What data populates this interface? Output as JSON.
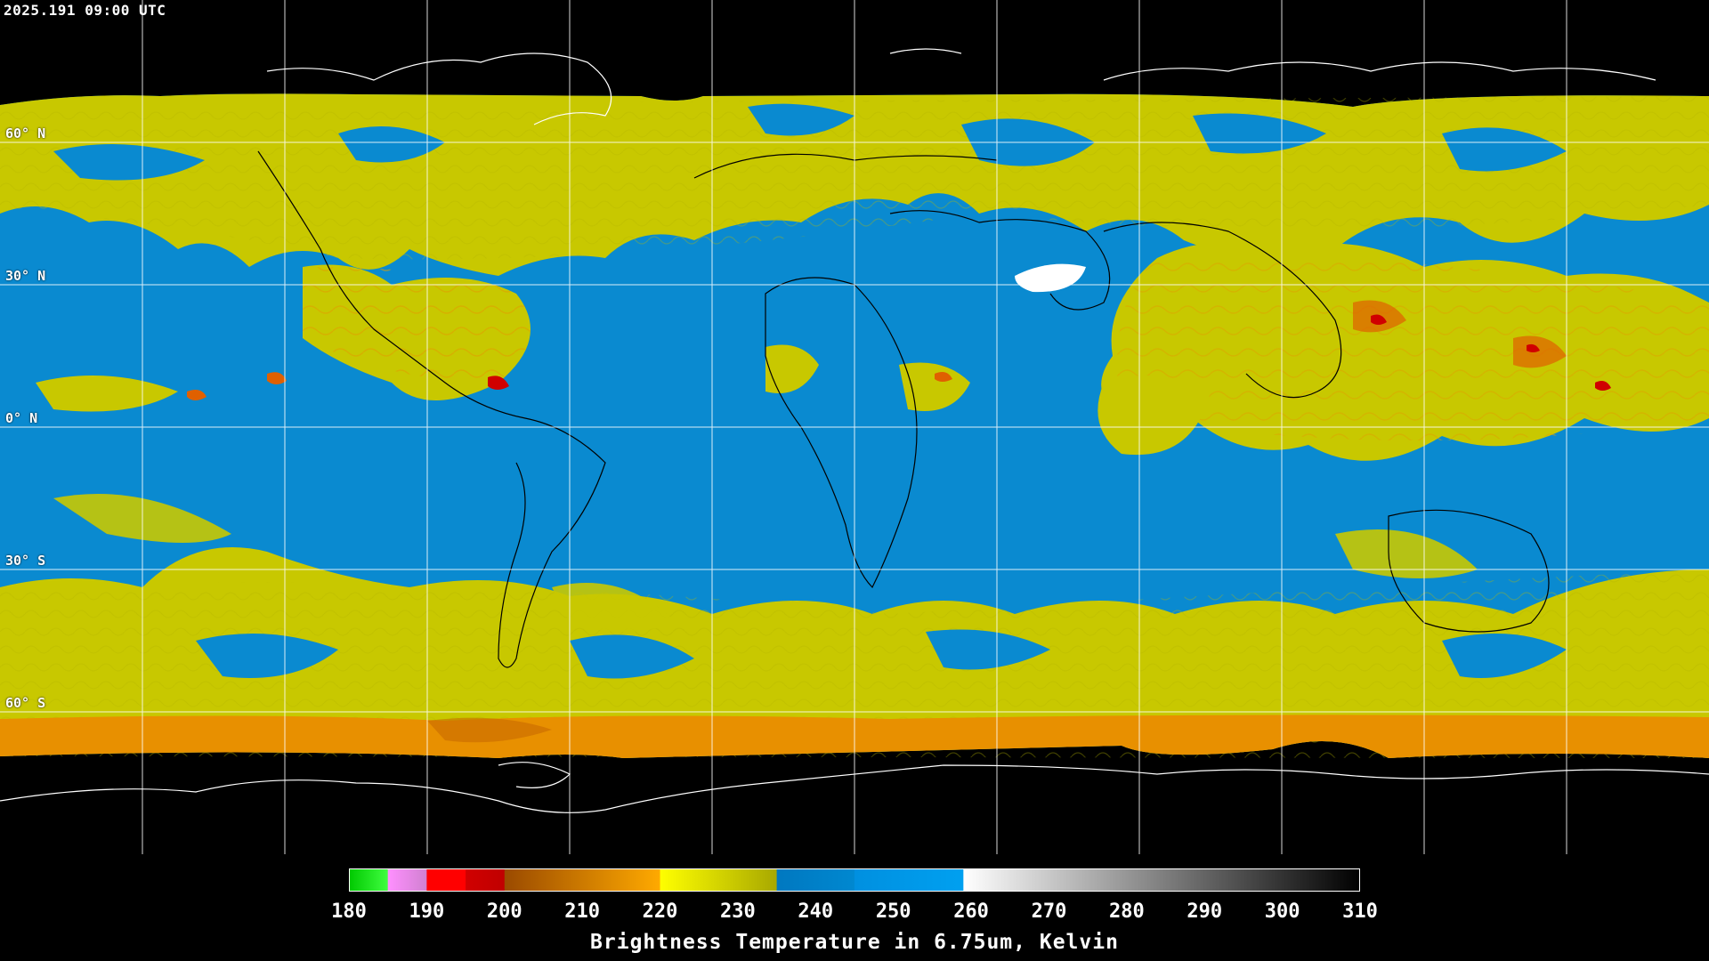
{
  "header": {
    "timestamp": "2025.191 09:00 UTC"
  },
  "latitudes": [
    {
      "label": "60° N",
      "lat": 60
    },
    {
      "label": "30° N",
      "lat": 30
    },
    {
      "label": "0° N",
      "lat": 0
    },
    {
      "label": "30° S",
      "lat": -30
    },
    {
      "label": "60° S",
      "lat": -60
    }
  ],
  "colorbar": {
    "title": "Brightness Temperature in 6.75um, Kelvin",
    "min": 180,
    "max": 310,
    "ticks": [
      "180",
      "190",
      "200",
      "210",
      "220",
      "230",
      "240",
      "250",
      "260",
      "270",
      "280",
      "290",
      "300",
      "310"
    ],
    "segments": [
      {
        "from": 180,
        "to": 185,
        "color_from": "#00c800",
        "color_to": "#40ff40"
      },
      {
        "from": 185,
        "to": 190,
        "color_from": "#ff90ff",
        "color_to": "#d080d0"
      },
      {
        "from": 190,
        "to": 195,
        "color_from": "#ff0000",
        "color_to": "#ff0000"
      },
      {
        "from": 195,
        "to": 200,
        "color_from": "#d00000",
        "color_to": "#c00000"
      },
      {
        "from": 200,
        "to": 220,
        "color_from": "#9a4a00",
        "color_to": "#ffaa00"
      },
      {
        "from": 220,
        "to": 235,
        "color_from": "#ffff00",
        "color_to": "#a8a800"
      },
      {
        "from": 235,
        "to": 245,
        "color_from": "#0078c0",
        "color_to": "#0088d0"
      },
      {
        "from": 245,
        "to": 259,
        "color_from": "#0090e0",
        "color_to": "#00a0f0"
      },
      {
        "from": 259,
        "to": 310,
        "color_from": "#ffffff",
        "color_to": "#000000"
      }
    ]
  },
  "colors": {
    "background": "#000000",
    "clear_air": "#0a8ad0",
    "moisture": "#c8c800",
    "cold_tops": "#ff6000",
    "coastline_land": "#000000",
    "coastline_polar": "#ffffff",
    "grid": "#ffffff"
  }
}
